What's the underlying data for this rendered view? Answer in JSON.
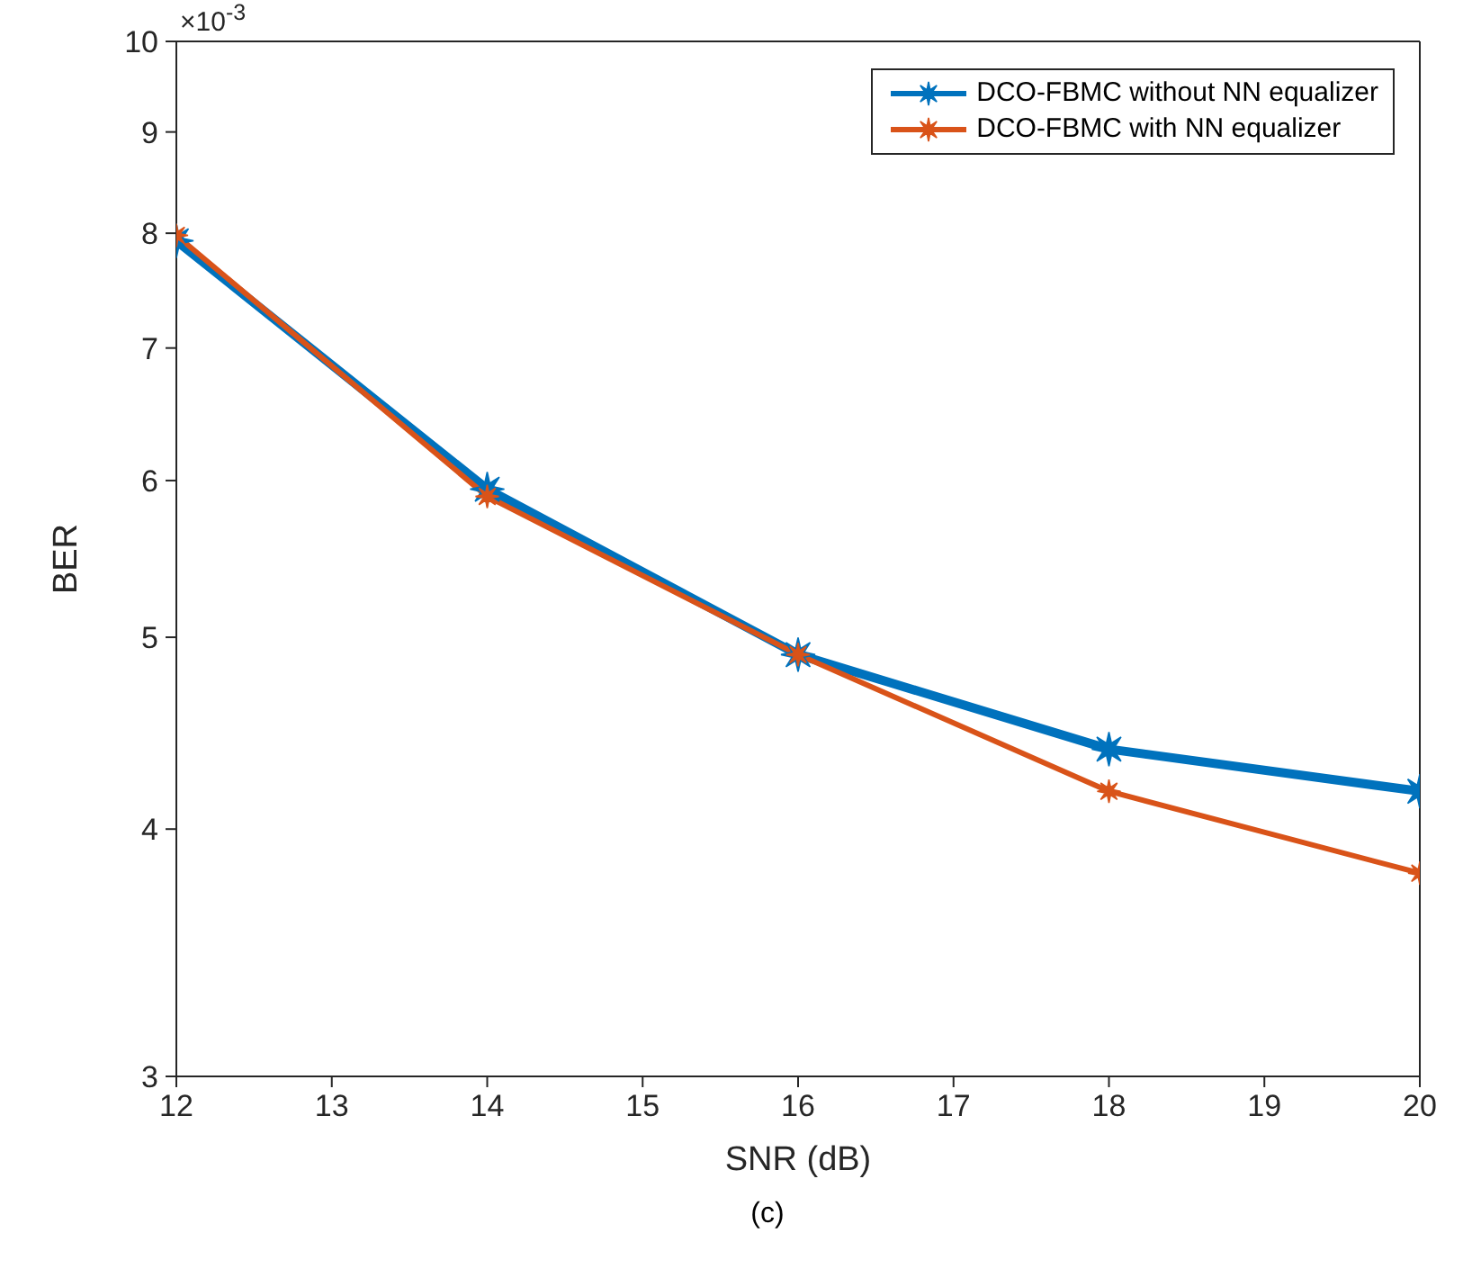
{
  "chart_data": {
    "type": "line",
    "xlabel": "SNR (dB)",
    "ylabel": "BER",
    "annotations": [
      "×10$^{-3}$",
      "(c)"
    ],
    "x": [
      12,
      14,
      16,
      18,
      20
    ],
    "series": [
      {
        "name": "DCO-FBMC without NN equalizer",
        "color": "#0072bd",
        "values": [
          7.93,
          5.94,
          4.9,
          4.39,
          4.18
        ]
      },
      {
        "name": "DCO-FBMC with NN equalizer",
        "color": "#d95319",
        "values": [
          7.98,
          5.89,
          4.9,
          4.18,
          3.8
        ]
      }
    ],
    "log": "y",
    "xlim": [
      12,
      20
    ],
    "xticks": [
      12,
      13,
      14,
      15,
      16,
      17,
      18,
      19,
      20
    ],
    "ylim": [
      3,
      10
    ],
    "yticks": [
      3,
      4,
      5,
      6,
      7,
      8,
      9,
      10
    ],
    "grid": false,
    "legend": "top right",
    "marker": "star",
    "line_style": "solid"
  }
}
